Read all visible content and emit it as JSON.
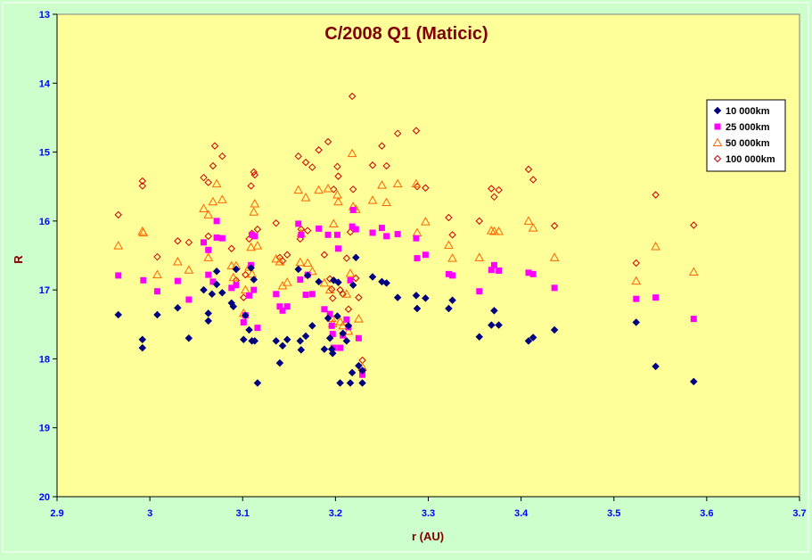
{
  "chart_data": {
    "type": "scatter",
    "title": "C/2008 Q1 (Maticic)",
    "xlabel": "r (AU)",
    "ylabel": "R",
    "xlim": [
      2.9,
      3.7
    ],
    "ylim": [
      20,
      13
    ],
    "y_reversed": true,
    "x_ticks": [
      "2.9",
      "3",
      "3.1",
      "3.2",
      "3.3",
      "3.4",
      "3.5",
      "3.6",
      "3.7"
    ],
    "y_ticks": [
      "13",
      "14",
      "15",
      "16",
      "17",
      "18",
      "19",
      "20"
    ],
    "grid": false,
    "legend_position": "top-right",
    "colors": {
      "background": "#ccffcc",
      "plot_area": "#ffff99",
      "title": "#800000",
      "tick_labels": "#0000ff"
    },
    "series": [
      {
        "name": "10 000km",
        "marker": "diamond-filled",
        "color": "#000080",
        "points": [
          [
            2.966,
            17.36
          ],
          [
            2.992,
            17.72
          ],
          [
            2.992,
            17.84
          ],
          [
            3.008,
            17.36
          ],
          [
            3.03,
            17.26
          ],
          [
            3.042,
            17.7
          ],
          [
            3.058,
            17.0
          ],
          [
            3.063,
            17.34
          ],
          [
            3.063,
            17.45
          ],
          [
            3.067,
            17.06
          ],
          [
            3.072,
            16.73
          ],
          [
            3.072,
            16.92
          ],
          [
            3.078,
            17.04
          ],
          [
            3.088,
            17.19
          ],
          [
            3.09,
            17.24
          ],
          [
            3.093,
            16.7
          ],
          [
            3.101,
            17.72
          ],
          [
            3.103,
            17.37
          ],
          [
            3.107,
            17.58
          ],
          [
            3.109,
            16.68
          ],
          [
            3.11,
            17.74
          ],
          [
            3.112,
            16.85
          ],
          [
            3.113,
            17.74
          ],
          [
            3.116,
            18.35
          ],
          [
            3.136,
            17.74
          ],
          [
            3.14,
            18.06
          ],
          [
            3.143,
            17.81
          ],
          [
            3.148,
            17.72
          ],
          [
            3.16,
            16.7
          ],
          [
            3.162,
            17.74
          ],
          [
            3.163,
            17.87
          ],
          [
            3.168,
            17.67
          ],
          [
            3.17,
            16.79
          ],
          [
            3.175,
            17.52
          ],
          [
            3.182,
            16.88
          ],
          [
            3.188,
            17.86
          ],
          [
            3.192,
            17.41
          ],
          [
            3.194,
            17.7
          ],
          [
            3.196,
            17.86
          ],
          [
            3.197,
            17.92
          ],
          [
            3.198,
            16.86
          ],
          [
            3.202,
            17.38
          ],
          [
            3.203,
            16.89
          ],
          [
            3.205,
            18.35
          ],
          [
            3.208,
            17.63
          ],
          [
            3.212,
            17.74
          ],
          [
            3.214,
            17.52
          ],
          [
            3.216,
            18.35
          ],
          [
            3.218,
            18.2
          ],
          [
            3.219,
            16.93
          ],
          [
            3.222,
            16.53
          ],
          [
            3.225,
            18.1
          ],
          [
            3.229,
            18.35
          ],
          [
            3.229,
            18.17
          ],
          [
            3.24,
            16.81
          ],
          [
            3.25,
            16.88
          ],
          [
            3.255,
            16.9
          ],
          [
            3.267,
            17.11
          ],
          [
            3.287,
            17.08
          ],
          [
            3.288,
            17.27
          ],
          [
            3.297,
            17.12
          ],
          [
            3.322,
            17.27
          ],
          [
            3.326,
            17.15
          ],
          [
            3.355,
            17.68
          ],
          [
            3.368,
            17.51
          ],
          [
            3.371,
            17.3
          ],
          [
            3.376,
            17.51
          ],
          [
            3.408,
            17.74
          ],
          [
            3.413,
            17.69
          ],
          [
            3.436,
            17.58
          ],
          [
            3.524,
            17.47
          ],
          [
            3.545,
            18.11
          ],
          [
            3.586,
            18.33
          ]
        ]
      },
      {
        "name": "25 000km",
        "marker": "square-filled",
        "color": "#ff00ff",
        "points": [
          [
            2.966,
            16.79
          ],
          [
            2.993,
            16.86
          ],
          [
            3.008,
            17.02
          ],
          [
            3.03,
            16.87
          ],
          [
            3.042,
            17.14
          ],
          [
            3.058,
            16.31
          ],
          [
            3.063,
            16.78
          ],
          [
            3.063,
            16.42
          ],
          [
            3.068,
            16.88
          ],
          [
            3.072,
            16.24
          ],
          [
            3.072,
            16.0
          ],
          [
            3.078,
            16.25
          ],
          [
            3.088,
            16.97
          ],
          [
            3.093,
            16.93
          ],
          [
            3.101,
            17.47
          ],
          [
            3.103,
            17.37
          ],
          [
            3.107,
            17.08
          ],
          [
            3.109,
            16.64
          ],
          [
            3.11,
            16.2
          ],
          [
            3.112,
            17.0
          ],
          [
            3.113,
            16.22
          ],
          [
            3.116,
            17.55
          ],
          [
            3.136,
            17.06
          ],
          [
            3.14,
            17.24
          ],
          [
            3.143,
            17.3
          ],
          [
            3.148,
            17.24
          ],
          [
            3.16,
            16.04
          ],
          [
            3.162,
            16.85
          ],
          [
            3.163,
            16.2
          ],
          [
            3.168,
            17.07
          ],
          [
            3.17,
            16.78
          ],
          [
            3.175,
            17.06
          ],
          [
            3.182,
            16.11
          ],
          [
            3.188,
            17.28
          ],
          [
            3.192,
            16.2
          ],
          [
            3.194,
            17.35
          ],
          [
            3.196,
            17.52
          ],
          [
            3.197,
            17.64
          ],
          [
            3.198,
            17.84
          ],
          [
            3.202,
            16.2
          ],
          [
            3.203,
            16.4
          ],
          [
            3.205,
            17.84
          ],
          [
            3.208,
            17.66
          ],
          [
            3.212,
            17.43
          ],
          [
            3.214,
            17.54
          ],
          [
            3.216,
            16.86
          ],
          [
            3.218,
            16.08
          ],
          [
            3.219,
            15.84
          ],
          [
            3.222,
            16.12
          ],
          [
            3.225,
            17.7
          ],
          [
            3.229,
            18.18
          ],
          [
            3.229,
            18.23
          ],
          [
            3.24,
            16.17
          ],
          [
            3.25,
            16.1
          ],
          [
            3.255,
            16.22
          ],
          [
            3.267,
            16.19
          ],
          [
            3.287,
            16.25
          ],
          [
            3.288,
            16.54
          ],
          [
            3.297,
            16.49
          ],
          [
            3.322,
            16.77
          ],
          [
            3.326,
            16.79
          ],
          [
            3.355,
            17.02
          ],
          [
            3.368,
            16.71
          ],
          [
            3.371,
            16.64
          ],
          [
            3.376,
            16.72
          ],
          [
            3.408,
            16.75
          ],
          [
            3.413,
            16.77
          ],
          [
            3.436,
            16.97
          ],
          [
            3.524,
            17.13
          ],
          [
            3.545,
            17.11
          ],
          [
            3.586,
            17.42
          ]
        ]
      },
      {
        "name": "50 000km",
        "marker": "triangle-open",
        "color": "#ff6600",
        "points": [
          [
            2.966,
            16.36
          ],
          [
            2.992,
            16.15
          ],
          [
            2.993,
            16.17
          ],
          [
            3.008,
            16.78
          ],
          [
            3.03,
            16.59
          ],
          [
            3.042,
            16.71
          ],
          [
            3.058,
            15.82
          ],
          [
            3.063,
            15.91
          ],
          [
            3.063,
            16.53
          ],
          [
            3.068,
            15.72
          ],
          [
            3.072,
            15.46
          ],
          [
            3.078,
            15.69
          ],
          [
            3.088,
            16.65
          ],
          [
            3.09,
            16.82
          ],
          [
            3.093,
            16.65
          ],
          [
            3.101,
            17.34
          ],
          [
            3.103,
            17.0
          ],
          [
            3.107,
            16.67
          ],
          [
            3.109,
            16.38
          ],
          [
            3.11,
            16.77
          ],
          [
            3.112,
            15.87
          ],
          [
            3.113,
            15.75
          ],
          [
            3.116,
            16.36
          ],
          [
            3.136,
            16.55
          ],
          [
            3.14,
            16.59
          ],
          [
            3.143,
            16.94
          ],
          [
            3.148,
            16.89
          ],
          [
            3.16,
            15.55
          ],
          [
            3.162,
            16.6
          ],
          [
            3.163,
            16.18
          ],
          [
            3.168,
            15.66
          ],
          [
            3.17,
            16.61
          ],
          [
            3.175,
            16.73
          ],
          [
            3.182,
            15.55
          ],
          [
            3.188,
            16.9
          ],
          [
            3.192,
            15.53
          ],
          [
            3.194,
            17.0
          ],
          [
            3.196,
            17.41
          ],
          [
            3.197,
            17.49
          ],
          [
            3.198,
            16.04
          ],
          [
            3.202,
            15.62
          ],
          [
            3.203,
            15.72
          ],
          [
            3.205,
            17.46
          ],
          [
            3.208,
            17.52
          ],
          [
            3.212,
            17.06
          ],
          [
            3.214,
            17.6
          ],
          [
            3.216,
            16.76
          ],
          [
            3.218,
            15.02
          ],
          [
            3.219,
            15.79
          ],
          [
            3.222,
            15.83
          ],
          [
            3.225,
            17.42
          ],
          [
            3.229,
            18.12
          ],
          [
            3.24,
            15.7
          ],
          [
            3.25,
            15.48
          ],
          [
            3.255,
            15.73
          ],
          [
            3.267,
            15.46
          ],
          [
            3.287,
            15.46
          ],
          [
            3.288,
            16.17
          ],
          [
            3.297,
            16.01
          ],
          [
            3.322,
            16.35
          ],
          [
            3.326,
            16.54
          ],
          [
            3.355,
            16.53
          ],
          [
            3.368,
            16.14
          ],
          [
            3.371,
            16.15
          ],
          [
            3.376,
            16.15
          ],
          [
            3.408,
            16.0
          ],
          [
            3.413,
            16.1
          ],
          [
            3.436,
            16.53
          ],
          [
            3.524,
            16.87
          ],
          [
            3.545,
            16.37
          ],
          [
            3.586,
            16.74
          ]
        ]
      },
      {
        "name": "100 000km",
        "marker": "diamond-open",
        "color": "#cc0000",
        "points": [
          [
            2.966,
            15.91
          ],
          [
            2.992,
            15.42
          ],
          [
            2.992,
            15.49
          ],
          [
            3.008,
            16.52
          ],
          [
            3.03,
            16.29
          ],
          [
            3.042,
            16.31
          ],
          [
            3.058,
            15.37
          ],
          [
            3.063,
            15.44
          ],
          [
            3.063,
            16.22
          ],
          [
            3.068,
            15.2
          ],
          [
            3.07,
            14.91
          ],
          [
            3.078,
            15.06
          ],
          [
            3.088,
            16.4
          ],
          [
            3.093,
            16.86
          ],
          [
            3.101,
            17.11
          ],
          [
            3.103,
            16.78
          ],
          [
            3.107,
            16.26
          ],
          [
            3.109,
            15.49
          ],
          [
            3.11,
            16.18
          ],
          [
            3.112,
            15.29
          ],
          [
            3.113,
            15.33
          ],
          [
            3.116,
            16.12
          ],
          [
            3.136,
            16.03
          ],
          [
            3.14,
            16.53
          ],
          [
            3.143,
            16.58
          ],
          [
            3.148,
            16.49
          ],
          [
            3.16,
            15.06
          ],
          [
            3.162,
            16.26
          ],
          [
            3.163,
            16.12
          ],
          [
            3.168,
            15.15
          ],
          [
            3.17,
            16.14
          ],
          [
            3.175,
            15.22
          ],
          [
            3.182,
            14.97
          ],
          [
            3.188,
            16.49
          ],
          [
            3.192,
            14.85
          ],
          [
            3.194,
            16.84
          ],
          [
            3.196,
            16.99
          ],
          [
            3.197,
            17.12
          ],
          [
            3.198,
            15.54
          ],
          [
            3.202,
            15.21
          ],
          [
            3.203,
            15.35
          ],
          [
            3.205,
            17.0
          ],
          [
            3.208,
            17.06
          ],
          [
            3.212,
            16.54
          ],
          [
            3.214,
            17.28
          ],
          [
            3.216,
            16.16
          ],
          [
            3.218,
            14.19
          ],
          [
            3.219,
            15.54
          ],
          [
            3.222,
            16.83
          ],
          [
            3.225,
            17.11
          ],
          [
            3.229,
            18.02
          ],
          [
            3.24,
            15.19
          ],
          [
            3.25,
            14.91
          ],
          [
            3.255,
            15.2
          ],
          [
            3.267,
            14.73
          ],
          [
            3.287,
            14.69
          ],
          [
            3.288,
            15.5
          ],
          [
            3.297,
            15.52
          ],
          [
            3.322,
            15.95
          ],
          [
            3.326,
            16.2
          ],
          [
            3.355,
            16.0
          ],
          [
            3.368,
            15.53
          ],
          [
            3.371,
            15.65
          ],
          [
            3.376,
            15.55
          ],
          [
            3.408,
            15.25
          ],
          [
            3.413,
            15.4
          ],
          [
            3.436,
            16.07
          ],
          [
            3.524,
            16.61
          ],
          [
            3.545,
            15.62
          ],
          [
            3.586,
            16.06
          ]
        ]
      }
    ]
  }
}
